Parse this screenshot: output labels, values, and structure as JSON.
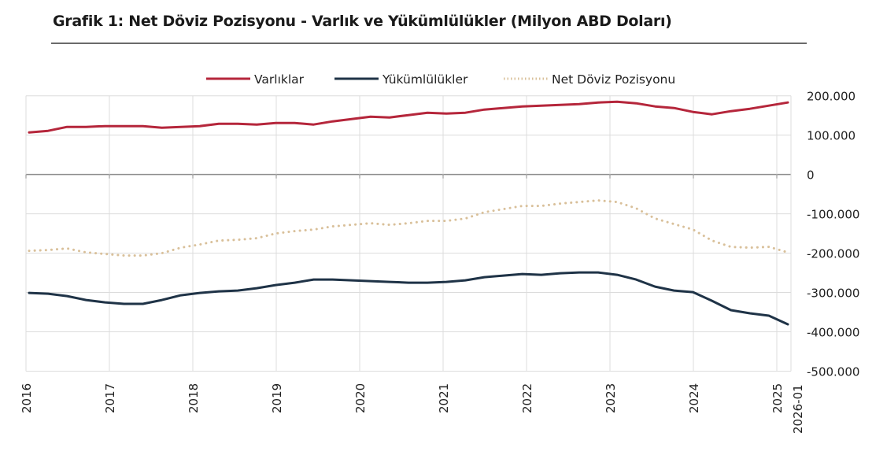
{
  "title": "Grafik 1: Net Döviz Pozisyonu - Varlık ve Yükümlülükler (Milyon ABD Doları)",
  "chart_data": {
    "type": "line",
    "title": "Grafik 1: Net Döviz Pozisyonu - Varlık ve Yükümlülükler (Milyon ABD Doları)",
    "xlabel": "",
    "ylabel": "",
    "ylim": [
      -500000,
      200000
    ],
    "yticks": [
      200000,
      100000,
      0,
      -100000,
      -200000,
      -300000,
      -400000,
      -500000
    ],
    "ytick_labels": [
      "200.000",
      "100.000",
      "0",
      "-100.000",
      "-200.000",
      "-300.000",
      "-400.000",
      "-500.000"
    ],
    "xtick_labels": [
      "2016",
      "2017",
      "2018",
      "2019",
      "2020",
      "2021",
      "2022",
      "2023",
      "2024",
      "2025",
      "2026-01"
    ],
    "grid": true,
    "legend_position": "top",
    "x_start": "2016-01",
    "x_end": "2026-01",
    "x_step": "quarterly",
    "series": [
      {
        "name": "Varlıklar",
        "color": "#b5263b",
        "style": "solid",
        "values": [
          107000,
          111000,
          121000,
          121000,
          123000,
          123000,
          123000,
          119000,
          121000,
          123000,
          129000,
          129000,
          127000,
          131000,
          131000,
          127000,
          135000,
          141000,
          147000,
          145000,
          151000,
          157000,
          155000,
          157000,
          165000,
          169000,
          173000,
          175000,
          177000,
          179000,
          183000,
          185000,
          181000,
          173000,
          169000,
          159000,
          153000,
          161000,
          167000,
          175000,
          183000
        ]
      },
      {
        "name": "Yükümlülükler",
        "color": "#1f3347",
        "style": "solid",
        "values": [
          -301000,
          -303000,
          -309000,
          -319000,
          -325000,
          -329000,
          -329000,
          -319000,
          -307000,
          -301000,
          -297000,
          -295000,
          -289000,
          -281000,
          -275000,
          -267000,
          -267000,
          -269000,
          -271000,
          -273000,
          -275000,
          -275000,
          -273000,
          -269000,
          -261000,
          -257000,
          -253000,
          -255000,
          -251000,
          -249000,
          -249000,
          -255000,
          -267000,
          -285000,
          -295000,
          -299000,
          -321000,
          -345000,
          -353000,
          -359000,
          -381000
        ]
      },
      {
        "name": "Net Döviz Pozisyonu",
        "color": "#d9c09a",
        "style": "dotted",
        "values": [
          -194000,
          -192000,
          -188000,
          -198000,
          -202000,
          -206000,
          -206000,
          -200000,
          -186000,
          -178000,
          -168000,
          -166000,
          -162000,
          -150000,
          -144000,
          -140000,
          -132000,
          -128000,
          -124000,
          -128000,
          -124000,
          -118000,
          -118000,
          -112000,
          -96000,
          -88000,
          -80000,
          -80000,
          -74000,
          -70000,
          -66000,
          -70000,
          -86000,
          -112000,
          -126000,
          -140000,
          -168000,
          -184000,
          -186000,
          -184000,
          -198000
        ]
      }
    ]
  }
}
